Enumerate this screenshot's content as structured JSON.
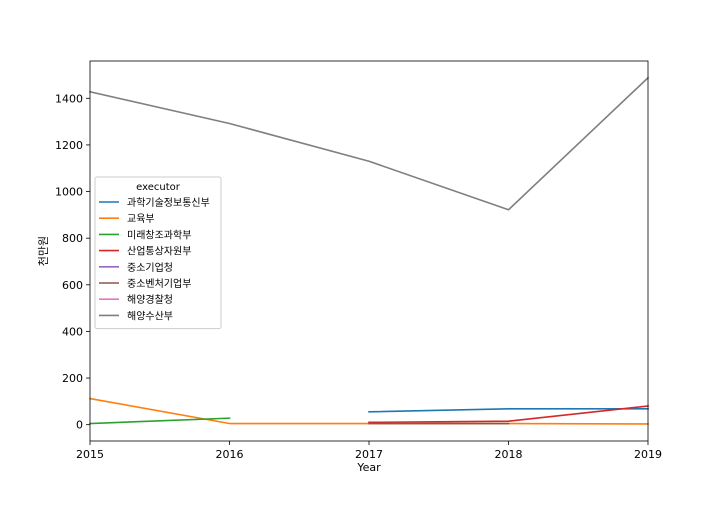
{
  "chart_data": {
    "type": "line",
    "title": "",
    "xlabel": "Year",
    "ylabel": "천만원",
    "x": [
      2015,
      2016,
      2017,
      2018,
      2019
    ],
    "xlim": [
      2015,
      2019
    ],
    "ylim": [
      -70,
      1560
    ],
    "yticks": [
      0,
      200,
      400,
      600,
      800,
      1000,
      1200,
      1400
    ],
    "legend_title": "executor",
    "legend_position": "center-left",
    "grid": false,
    "series": [
      {
        "name": "과학기술정보통신부",
        "color": "#1f77b4",
        "points": [
          [
            2017,
            55
          ],
          [
            2018,
            68
          ],
          [
            2019,
            68
          ]
        ]
      },
      {
        "name": "교육부",
        "color": "#ff7f0e",
        "points": [
          [
            2015,
            112
          ],
          [
            2016,
            5
          ],
          [
            2017,
            5
          ],
          [
            2018,
            5
          ],
          [
            2019,
            3
          ]
        ]
      },
      {
        "name": "미래창조과학부",
        "color": "#2ca02c",
        "points": [
          [
            2015,
            5
          ],
          [
            2016,
            28
          ]
        ]
      },
      {
        "name": "산업통상자원부",
        "color": "#d62728",
        "points": [
          [
            2017,
            10
          ],
          [
            2018,
            15
          ],
          [
            2019,
            80
          ]
        ]
      },
      {
        "name": "중소기업청",
        "color": "#9467bd",
        "points": [
          [
            2015,
            0
          ]
        ]
      },
      {
        "name": "중소벤처기업부",
        "color": "#8c564b",
        "points": [
          [
            2017,
            5
          ],
          [
            2018,
            5
          ]
        ]
      },
      {
        "name": "해양경찰청",
        "color": "#e377c2",
        "points": [
          [
            2019,
            0
          ]
        ]
      },
      {
        "name": "해양수산부",
        "color": "#7f7f7f",
        "points": [
          [
            2015,
            1428
          ],
          [
            2016,
            1292
          ],
          [
            2017,
            1130
          ],
          [
            2018,
            922
          ],
          [
            2019,
            1488
          ]
        ]
      }
    ]
  }
}
